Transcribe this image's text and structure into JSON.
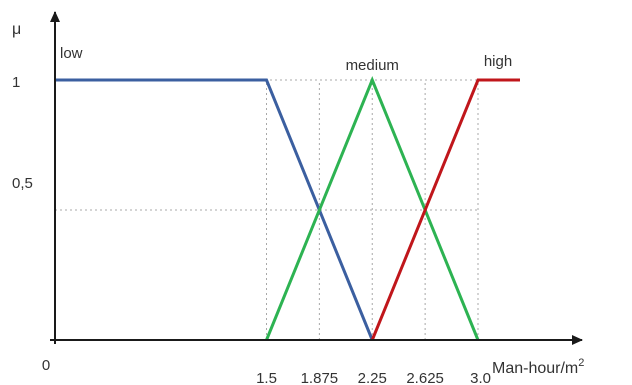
{
  "chart_data": {
    "type": "line",
    "title": "",
    "xlabel": "Man-hour/m",
    "xlabel_superscript": "2",
    "ylabel": "μ",
    "xlim": [
      0,
      3.0
    ],
    "ylim": [
      0,
      1
    ],
    "x_ticks": [
      "0",
      "1.5",
      "1.875",
      "2.25",
      "2.625",
      "3.0"
    ],
    "x_tick_values": [
      0,
      1.5,
      1.875,
      2.25,
      2.625,
      3.0
    ],
    "y_ticks": [
      "1",
      "0,5"
    ],
    "y_tick_values": [
      1,
      0.5
    ],
    "guide_x": [
      1.5,
      1.875,
      2.25,
      2.625,
      3.0
    ],
    "guide_y": [
      1,
      0.5
    ],
    "grid": "dotted guide lines at tick values",
    "legend": "none; series labelled directly on the plot",
    "series": [
      {
        "name": "low",
        "color": "#3b5fa0",
        "points": [
          [
            0,
            1
          ],
          [
            1.5,
            1
          ],
          [
            2.25,
            0
          ]
        ]
      },
      {
        "name": "medium",
        "color": "#2db352",
        "points": [
          [
            1.5,
            0
          ],
          [
            2.25,
            1
          ],
          [
            3.0,
            0
          ]
        ]
      },
      {
        "name": "high",
        "color": "#c0161b",
        "points": [
          [
            2.25,
            0
          ],
          [
            3.0,
            1
          ]
        ]
      }
    ]
  }
}
